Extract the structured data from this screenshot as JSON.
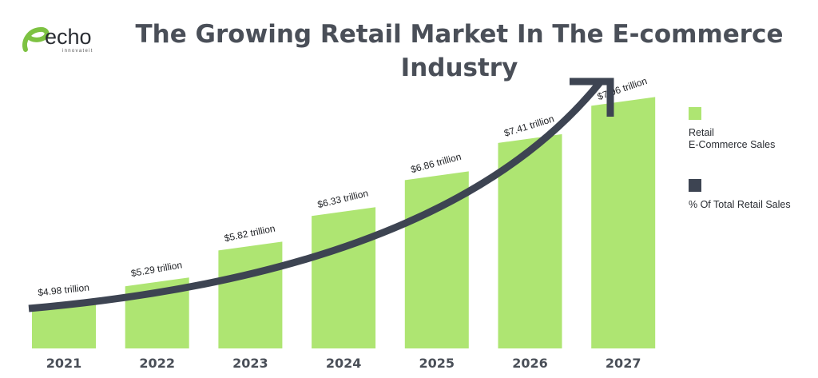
{
  "logo": {
    "name": "echo",
    "tagline": "innovateit"
  },
  "chart_data": {
    "type": "bar",
    "title": "The Growing Retail Market In The E-commerce Industry",
    "categories": [
      "2021",
      "2022",
      "2023",
      "2024",
      "2025",
      "2026",
      "2027"
    ],
    "series": [
      {
        "name": "Retail\nE-Commerce Sales",
        "values": [
          4.98,
          5.29,
          5.82,
          6.33,
          6.86,
          7.41,
          7.96
        ],
        "unit": "trillion USD",
        "color": "#aee572"
      }
    ],
    "data_labels": [
      "$4.98 trillion",
      "$5.29 trillion",
      "$5.82 trillion",
      "$6.33 trillion",
      "$6.86 trillion",
      "$7.41 trillion",
      "$7.96 trillion"
    ],
    "trend_arrow": {
      "shown": true,
      "color": "#3d4452"
    },
    "legend": {
      "placement": "right",
      "entries": [
        {
          "label": "Retail\nE-Commerce Sales",
          "color": "#aee572"
        },
        {
          "label": "% Of Total Retail Sales",
          "color": "#3d4452"
        }
      ]
    },
    "grid": false
  },
  "colors": {
    "bar": "#aee572",
    "arrow": "#3d4452",
    "title": "#4a4f58",
    "logo": "#7dc242"
  }
}
